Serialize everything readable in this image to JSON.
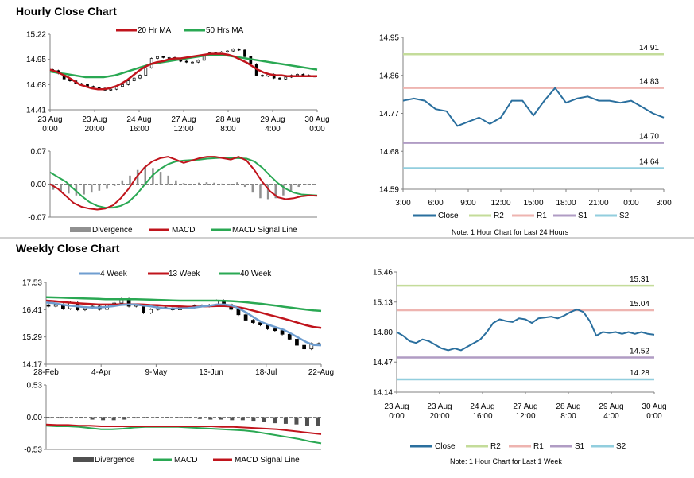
{
  "colors": {
    "close": "#2a6f9e",
    "ma20": "#c0141c",
    "ma50": "#2aa853",
    "r2": "#c4dc9a",
    "r1": "#eeb4b0",
    "s1": "#b09cc4",
    "s2": "#92cede",
    "axis": "#808080",
    "div": "#909090",
    "wk4": "#6f9ed0"
  },
  "chart_data": [
    {
      "id": "hourly_candles",
      "type": "line",
      "title": "Hourly Close Chart",
      "legend": [
        "20 Hr MA",
        "50 Hrs MA"
      ],
      "yticks": [
        "15.22",
        "14.95",
        "14.68",
        "14.41"
      ],
      "ylim": [
        14.41,
        15.22
      ],
      "xticks": [
        [
          "23 Aug",
          "0:00"
        ],
        [
          "23 Aug",
          "20:00"
        ],
        [
          "24 Aug",
          "16:00"
        ],
        [
          "27 Aug",
          "12:00"
        ],
        [
          "28 Aug",
          "8:00"
        ],
        [
          "29 Aug",
          "4:00"
        ],
        [
          "30 Aug",
          "0:00"
        ]
      ],
      "close": [
        14.83,
        14.8,
        14.74,
        14.72,
        14.69,
        14.68,
        14.66,
        14.65,
        14.64,
        14.62,
        14.63,
        14.66,
        14.68,
        14.72,
        14.75,
        14.78,
        14.86,
        14.96,
        14.98,
        14.97,
        14.97,
        14.95,
        14.93,
        14.92,
        14.92,
        14.94,
        15.0,
        15.02,
        15.01,
        15.03,
        15.04,
        15.06,
        15.05,
        14.98,
        14.9,
        14.78,
        14.77,
        14.79,
        14.75,
        14.74,
        14.76,
        14.78,
        14.79,
        14.78,
        14.77,
        14.77
      ],
      "ma20": [
        14.84,
        14.82,
        14.79,
        14.76,
        14.72,
        14.68,
        14.66,
        14.64,
        14.63,
        14.63,
        14.64,
        14.66,
        14.69,
        14.73,
        14.78,
        14.83,
        14.87,
        14.9,
        14.92,
        14.93,
        14.95,
        14.96,
        14.96,
        14.97,
        14.98,
        14.99,
        15.0,
        15.01,
        15.01,
        15.01,
        15.0,
        14.98,
        14.95,
        14.92,
        14.88,
        14.84,
        14.81,
        14.79,
        14.78,
        14.78,
        14.77,
        14.77,
        14.77,
        14.77,
        14.77,
        14.77
      ],
      "ma50": [
        14.82,
        14.81,
        14.8,
        14.79,
        14.78,
        14.77,
        14.76,
        14.76,
        14.76,
        14.76,
        14.77,
        14.78,
        14.8,
        14.82,
        14.84,
        14.86,
        14.88,
        14.9,
        14.91,
        14.92,
        14.93,
        14.94,
        14.95,
        14.96,
        14.97,
        14.98,
        14.99,
        15.0,
        15.0,
        15.0,
        14.99,
        14.98,
        14.97,
        14.96,
        14.95,
        14.94,
        14.93,
        14.92,
        14.91,
        14.9,
        14.89,
        14.88,
        14.87,
        14.86,
        14.85,
        14.84
      ]
    },
    {
      "id": "hourly_macd",
      "type": "line",
      "legend": [
        "Divergence",
        "MACD",
        "MACD Signal Line"
      ],
      "yticks": [
        "0.07",
        "0.00",
        "-0.07"
      ],
      "ylim": [
        -0.07,
        0.07
      ],
      "macd": [
        0.0,
        -0.01,
        -0.025,
        -0.04,
        -0.048,
        -0.052,
        -0.054,
        -0.052,
        -0.045,
        -0.03,
        -0.01,
        0.015,
        0.035,
        0.048,
        0.055,
        0.058,
        0.052,
        0.045,
        0.05,
        0.055,
        0.058,
        0.058,
        0.055,
        0.052,
        0.058,
        0.05,
        0.03,
        0.005,
        -0.015,
        -0.028,
        -0.032,
        -0.03,
        -0.026,
        -0.024,
        -0.025
      ],
      "signal": [
        0.025,
        0.015,
        0.005,
        -0.01,
        -0.025,
        -0.038,
        -0.046,
        -0.05,
        -0.05,
        -0.046,
        -0.038,
        -0.022,
        -0.002,
        0.018,
        0.032,
        0.042,
        0.048,
        0.05,
        0.051,
        0.052,
        0.054,
        0.055,
        0.056,
        0.055,
        0.055,
        0.054,
        0.048,
        0.035,
        0.018,
        0.002,
        -0.01,
        -0.018,
        -0.022,
        -0.023,
        -0.024
      ],
      "divergence": [
        -0.012,
        -0.016,
        -0.02,
        -0.024,
        -0.022,
        -0.018,
        -0.014,
        -0.01,
        -0.004,
        0.008,
        0.018,
        0.03,
        0.038,
        0.034,
        0.026,
        0.018,
        0.008,
        0.002,
        -0.002,
        0.003,
        0.004,
        0.003,
        0.001,
        -0.002,
        0.004,
        -0.006,
        -0.018,
        -0.03,
        -0.032,
        -0.03,
        -0.024,
        -0.014,
        -0.006,
        -0.002,
        -0.001
      ]
    },
    {
      "id": "hourly_pivot",
      "type": "line",
      "legend": [
        "Close",
        "R2",
        "R1",
        "S1",
        "S2"
      ],
      "note": "Note: 1 Hour Chart for Last 24 Hours",
      "yticks": [
        "14.95",
        "14.86",
        "14.77",
        "14.68",
        "14.59"
      ],
      "ylim": [
        14.59,
        14.95
      ],
      "xticks": [
        "3:00",
        "6:00",
        "9:00",
        "12:00",
        "15:00",
        "18:00",
        "21:00",
        "0:00",
        "3:00"
      ],
      "levels": {
        "R2": 14.91,
        "R1": 14.83,
        "S1": 14.7,
        "S2": 14.64
      },
      "level_labels": {
        "R2": "14.91",
        "R1": "14.83",
        "S1": "14.70",
        "S2": "14.64"
      },
      "close": [
        14.8,
        14.805,
        14.8,
        14.78,
        14.775,
        14.74,
        14.75,
        14.76,
        14.745,
        14.76,
        14.8,
        14.8,
        14.765,
        14.8,
        14.83,
        14.795,
        14.805,
        14.81,
        14.8,
        14.8,
        14.795,
        14.8,
        14.785,
        14.77,
        14.76
      ]
    },
    {
      "id": "weekly_candles",
      "type": "line",
      "title": "Weekly Close Chart",
      "legend": [
        "4 Week",
        "13 Week",
        "40 Week"
      ],
      "yticks": [
        "17.53",
        "16.41",
        "15.29",
        "14.17"
      ],
      "ylim": [
        14.17,
        17.53
      ],
      "xticks": [
        "28-Feb",
        "4-Apr",
        "9-May",
        "13-Jun",
        "18-Jul",
        "22-Aug"
      ],
      "close": [
        16.55,
        16.62,
        16.45,
        16.7,
        16.4,
        16.48,
        16.55,
        16.42,
        16.6,
        16.68,
        16.85,
        16.55,
        16.6,
        16.28,
        16.42,
        16.5,
        16.48,
        16.4,
        16.52,
        16.48,
        16.58,
        16.55,
        16.6,
        16.78,
        16.62,
        16.42,
        16.2,
        15.98,
        15.88,
        15.78,
        15.62,
        15.55,
        15.4,
        15.2,
        14.95,
        14.8,
        15.02,
        14.98
      ],
      "wk4": [
        16.7,
        16.68,
        16.62,
        16.58,
        16.55,
        16.52,
        16.5,
        16.5,
        16.52,
        16.55,
        16.6,
        16.62,
        16.62,
        16.58,
        16.55,
        16.5,
        16.46,
        16.45,
        16.46,
        16.47,
        16.5,
        16.54,
        16.57,
        16.62,
        16.62,
        16.58,
        16.45,
        16.28,
        16.08,
        15.9,
        15.78,
        15.68,
        15.58,
        15.42,
        15.25,
        15.08,
        14.96,
        14.95
      ],
      "wk13": [
        16.78,
        16.76,
        16.73,
        16.7,
        16.68,
        16.66,
        16.64,
        16.62,
        16.62,
        16.62,
        16.63,
        16.63,
        16.63,
        16.62,
        16.6,
        16.59,
        16.57,
        16.56,
        16.54,
        16.53,
        16.53,
        16.54,
        16.55,
        16.56,
        16.56,
        16.54,
        16.5,
        16.44,
        16.36,
        16.28,
        16.2,
        16.12,
        16.04,
        15.95,
        15.86,
        15.77,
        15.7,
        15.66
      ],
      "wk40": [
        16.92,
        16.91,
        16.9,
        16.89,
        16.88,
        16.87,
        16.86,
        16.85,
        16.84,
        16.84,
        16.84,
        16.84,
        16.84,
        16.83,
        16.82,
        16.81,
        16.8,
        16.79,
        16.78,
        16.78,
        16.78,
        16.78,
        16.78,
        16.78,
        16.77,
        16.76,
        16.74,
        16.71,
        16.68,
        16.65,
        16.61,
        16.57,
        16.53,
        16.49,
        16.45,
        16.41,
        16.38,
        16.36
      ]
    },
    {
      "id": "weekly_macd",
      "type": "line",
      "legend": [
        "Divergence",
        "MACD",
        "MACD Signal Line"
      ],
      "yticks": [
        "0.53",
        "0.00",
        "-0.53"
      ],
      "ylim": [
        -0.53,
        0.53
      ],
      "macd": [
        -0.14,
        -0.15,
        -0.15,
        -0.16,
        -0.18,
        -0.2,
        -0.2,
        -0.19,
        -0.17,
        -0.16,
        -0.16,
        -0.16,
        -0.16,
        -0.17,
        -0.18,
        -0.19,
        -0.2,
        -0.21,
        -0.22,
        -0.24,
        -0.27,
        -0.3,
        -0.33,
        -0.36,
        -0.4,
        -0.43
      ],
      "signal": [
        -0.12,
        -0.13,
        -0.13,
        -0.14,
        -0.14,
        -0.15,
        -0.15,
        -0.15,
        -0.15,
        -0.15,
        -0.15,
        -0.15,
        -0.15,
        -0.15,
        -0.15,
        -0.15,
        -0.16,
        -0.16,
        -0.17,
        -0.18,
        -0.19,
        -0.2,
        -0.22,
        -0.24,
        -0.26,
        -0.28
      ],
      "divergence": [
        -0.02,
        -0.02,
        -0.02,
        -0.02,
        -0.04,
        -0.05,
        -0.05,
        -0.04,
        -0.02,
        -0.01,
        -0.01,
        -0.01,
        -0.01,
        -0.02,
        -0.03,
        -0.04,
        -0.04,
        -0.05,
        -0.05,
        -0.06,
        -0.08,
        -0.1,
        -0.11,
        -0.12,
        -0.14,
        -0.15
      ]
    },
    {
      "id": "weekly_pivot",
      "type": "line",
      "legend": [
        "Close",
        "R2",
        "R1",
        "S1",
        "S2"
      ],
      "note": "Note: 1 Hour Chart for Last 1 Week",
      "yticks": [
        "15.46",
        "15.13",
        "14.80",
        "14.47",
        "14.14"
      ],
      "ylim": [
        14.14,
        15.46
      ],
      "xticks": [
        [
          "23 Aug",
          "0:00"
        ],
        [
          "23 Aug",
          "20:00"
        ],
        [
          "24 Aug",
          "16:00"
        ],
        [
          "27 Aug",
          "12:00"
        ],
        [
          "28 Aug",
          "8:00"
        ],
        [
          "29 Aug",
          "4:00"
        ],
        [
          "30 Aug",
          "0:00"
        ]
      ],
      "levels": {
        "R2": 15.31,
        "R1": 15.04,
        "S1": 14.52,
        "S2": 14.28
      },
      "level_labels": {
        "R2": "15.31",
        "R1": "15.04",
        "S1": "14.52",
        "S2": "14.28"
      },
      "close": [
        14.8,
        14.76,
        14.7,
        14.68,
        14.72,
        14.7,
        14.66,
        14.62,
        14.6,
        14.62,
        14.6,
        14.64,
        14.68,
        14.72,
        14.8,
        14.9,
        14.94,
        14.92,
        14.91,
        14.95,
        14.94,
        14.9,
        14.95,
        14.96,
        14.97,
        14.95,
        14.98,
        15.02,
        15.05,
        15.02,
        14.92,
        14.76,
        14.8,
        14.79,
        14.8,
        14.78,
        14.8,
        14.78,
        14.8,
        14.78,
        14.77
      ]
    }
  ]
}
